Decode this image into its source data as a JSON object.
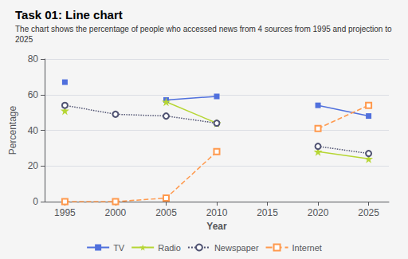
{
  "chart_data": {
    "type": "line",
    "title": "Task 01: Line chart",
    "subtitle": "The chart shows the percentage of people who accessed news from 4 sources from 1995 and projection to 2025",
    "xlabel": "Year",
    "ylabel": "Percentage",
    "x": [
      1995,
      2000,
      2005,
      2010,
      2015,
      2020,
      2025
    ],
    "series": [
      {
        "name": "TV",
        "values": [
          67,
          null,
          57,
          59,
          null,
          54,
          48
        ],
        "line_style": "solid",
        "marker": "square"
      },
      {
        "name": "Radio",
        "values": [
          51,
          null,
          56,
          44,
          null,
          28,
          24
        ],
        "line_style": "solid",
        "marker": "star"
      },
      {
        "name": "Newspaper",
        "values": [
          54,
          49,
          48,
          44,
          null,
          31,
          27
        ],
        "line_style": "dotted",
        "marker": "open_circle"
      },
      {
        "name": "Internet",
        "values": [
          0,
          0,
          2,
          28,
          null,
          41,
          54
        ],
        "line_style": "dashed",
        "marker": "open_square"
      }
    ],
    "xlim": [
      1993,
      2027
    ],
    "xticks": [
      1995,
      2000,
      2005,
      2010,
      2015,
      2020,
      2025
    ],
    "ylim": [
      0,
      80
    ],
    "yticks": [
      0,
      20,
      40,
      60,
      80
    ],
    "grid": true,
    "legend": "bottom"
  }
}
